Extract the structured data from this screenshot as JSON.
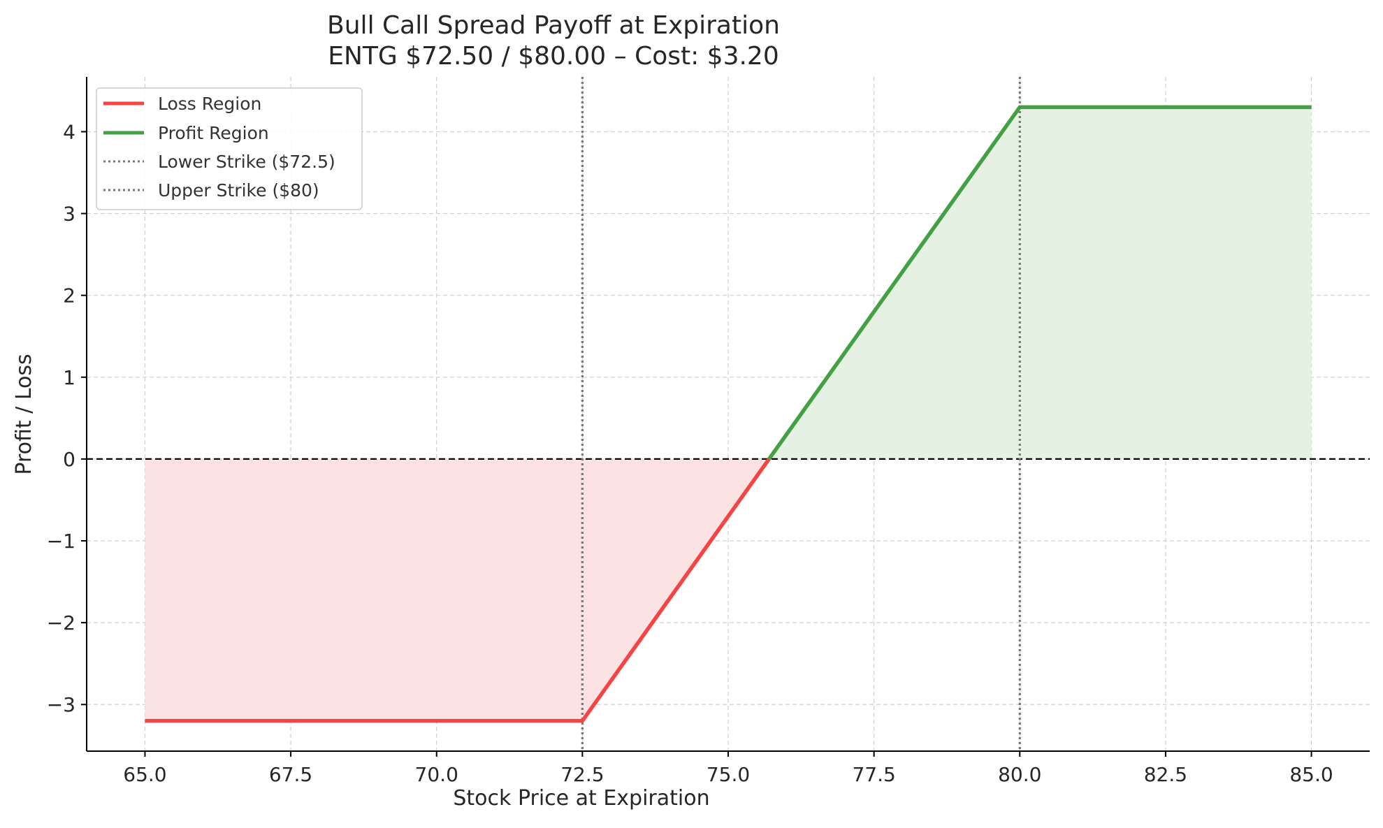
{
  "chart_data": {
    "type": "line",
    "title": "Bull Call Spread Payoff at Expiration",
    "subtitle": "ENTG $72.50 / $80.00 – Cost: $3.20",
    "xlabel": "Stock Price at Expiration",
    "ylabel": "Profit / Loss",
    "xlim": [
      64.0,
      86.0
    ],
    "ylim": [
      -3.57,
      4.67
    ],
    "x_ticks": [
      65.0,
      67.5,
      70.0,
      72.5,
      75.0,
      77.5,
      80.0,
      82.5,
      85.0
    ],
    "x_tick_labels": [
      "65.0",
      "67.5",
      "70.0",
      "72.5",
      "75.0",
      "77.5",
      "80.0",
      "82.5",
      "85.0"
    ],
    "y_ticks": [
      -3,
      -2,
      -1,
      0,
      1,
      2,
      3,
      4
    ],
    "y_tick_labels": [
      "−3",
      "−2",
      "−1",
      "0",
      "1",
      "2",
      "3",
      "4"
    ],
    "grid": true,
    "legend_position": "top-left",
    "series": [
      {
        "name": "Loss Region",
        "color": "#f44444",
        "fill": "#fde2e4",
        "x": [
          65.0,
          72.5,
          75.7
        ],
        "y": [
          -3.2,
          -3.2,
          0.0
        ]
      },
      {
        "name": "Profit Region",
        "color": "#43a043",
        "fill": "#e5f1e3",
        "x": [
          75.7,
          80.0,
          85.0
        ],
        "y": [
          0.0,
          4.3,
          4.3
        ]
      }
    ],
    "reference_lines": [
      {
        "name": "Lower Strike ($72.5)",
        "x": 72.5,
        "style": "dotted",
        "color": "#777777"
      },
      {
        "name": "Upper Strike ($80)",
        "x": 80.0,
        "style": "dotted",
        "color": "#777777"
      }
    ],
    "zero_line": {
      "y": 0,
      "style": "dashed",
      "color": "#000000"
    }
  }
}
